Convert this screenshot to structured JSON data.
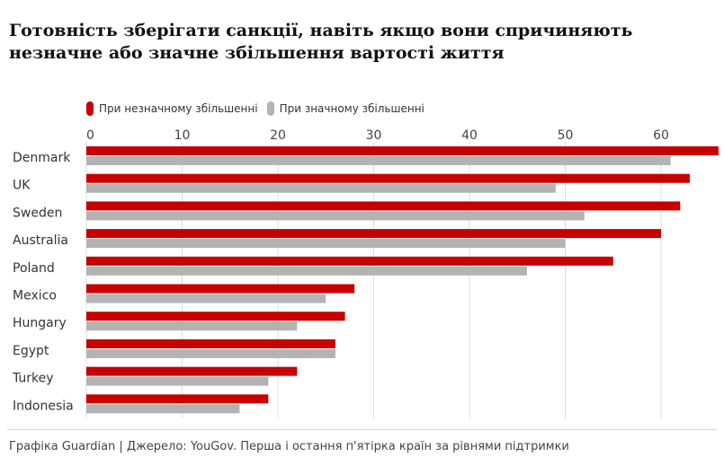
{
  "title": "Готовність зберігати санкції, навіть якщо вони спричиняють незначне або значне збільшення вартості життя",
  "footer": "Графіка Guardian | Джерело: YouGov. Перша і остання п'ятірка країн за рівнями підтримки",
  "chart_data": {
    "type": "bar",
    "orientation": "horizontal",
    "title": "Готовність зберігати санкції, навіть якщо вони спричиняють незначне або значне збільшення вартості життя",
    "categories": [
      "Denmark",
      "UK",
      "Sweden",
      "Australia",
      "Poland",
      "Mexico",
      "Hungary",
      "Egypt",
      "Turkey",
      "Indonesia"
    ],
    "series": [
      {
        "name": "При незначному збільшенні",
        "color": "#c70000",
        "values": [
          66,
          63,
          62,
          60,
          55,
          28,
          27,
          26,
          22,
          19
        ]
      },
      {
        "name": "При значному збільшенні",
        "color": "#b3b3b3",
        "values": [
          61,
          49,
          52,
          50,
          46,
          25,
          22,
          26,
          19,
          16
        ]
      }
    ],
    "ticks": [
      0,
      10,
      20,
      30,
      40,
      50,
      60
    ],
    "xlim": [
      0,
      66
    ],
    "xlabel": "",
    "ylabel": "",
    "legend_position": "top-left"
  }
}
